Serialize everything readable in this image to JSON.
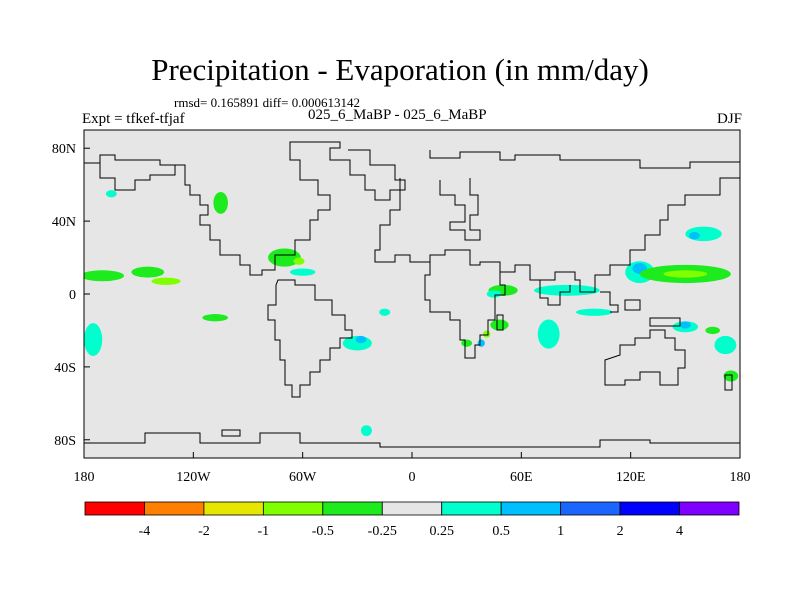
{
  "title": "Precipitation - Evaporation (in mm/day)",
  "stats_text": "rmsd= 0.165891 diff= 0.000613142",
  "left_label": "Expt = tfkef-tfjaf",
  "center_label": "025_6_MaBP - 025_6_MaBP",
  "right_label": "DJF",
  "axes": {
    "x_ticks": [
      {
        "value": -180,
        "label": "180"
      },
      {
        "value": -120,
        "label": "120W"
      },
      {
        "value": -60,
        "label": "60W"
      },
      {
        "value": 0,
        "label": "0"
      },
      {
        "value": 60,
        "label": "60E"
      },
      {
        "value": 120,
        "label": "120E"
      },
      {
        "value": 180,
        "label": "180"
      }
    ],
    "y_ticks": [
      {
        "value": 80,
        "label": "80N"
      },
      {
        "value": 40,
        "label": "40N"
      },
      {
        "value": 0,
        "label": "0"
      },
      {
        "value": -40,
        "label": "40S"
      },
      {
        "value": -80,
        "label": "80S"
      }
    ],
    "lon_range": [
      -180,
      180
    ],
    "lat_range": [
      -90,
      90
    ]
  },
  "colors": {
    "background_field": "#e6e6e6",
    "coastline": "#000000"
  },
  "colorbar": {
    "swatches": [
      "#ff0000",
      "#ff8000",
      "#e6e600",
      "#80ff00",
      "#1eeb1e",
      "#e6e6e6",
      "#00ffcc",
      "#00bfff",
      "#1a66ff",
      "#0000ff",
      "#8000ff"
    ],
    "labels": [
      "-4",
      "-2",
      "-1",
      "-0.5",
      "-0.25",
      "0.25",
      "0.5",
      "1",
      "2",
      "4"
    ]
  },
  "field_patches": [
    {
      "color": "#1eeb1e",
      "lon": -170,
      "lat": 10,
      "rlon": 12,
      "rlat": 3
    },
    {
      "color": "#1eeb1e",
      "lon": -145,
      "lat": 12,
      "rlon": 9,
      "rlat": 3
    },
    {
      "color": "#80ff00",
      "lon": -135,
      "lat": 7,
      "rlon": 8,
      "rlat": 2
    },
    {
      "color": "#1eeb1e",
      "lon": -105,
      "lat": 50,
      "rlon": 4,
      "rlat": 6
    },
    {
      "color": "#00ffcc",
      "lon": -165,
      "lat": 55,
      "rlon": 3,
      "rlat": 2
    },
    {
      "color": "#1eeb1e",
      "lon": -70,
      "lat": 20,
      "rlon": 9,
      "rlat": 5
    },
    {
      "color": "#80ff00",
      "lon": -62,
      "lat": 18,
      "rlon": 3,
      "rlat": 2
    },
    {
      "color": "#00ffcc",
      "lon": -60,
      "lat": 12,
      "rlon": 7,
      "rlat": 2
    },
    {
      "color": "#1eeb1e",
      "lon": -108,
      "lat": -13,
      "rlon": 7,
      "rlat": 2
    },
    {
      "color": "#00ffcc",
      "lon": -175,
      "lat": -25,
      "rlon": 5,
      "rlat": 9
    },
    {
      "color": "#00ffcc",
      "lon": -30,
      "lat": -27,
      "rlon": 8,
      "rlat": 4
    },
    {
      "color": "#00bfff",
      "lon": -28,
      "lat": -25,
      "rlon": 3,
      "rlat": 2
    },
    {
      "color": "#00ffcc",
      "lon": -15,
      "lat": -10,
      "rlon": 3,
      "rlat": 2
    },
    {
      "color": "#00ffcc",
      "lon": -25,
      "lat": -75,
      "rlon": 3,
      "rlat": 3
    },
    {
      "color": "#1eeb1e",
      "lon": 50,
      "lat": 2,
      "rlon": 8,
      "rlat": 3
    },
    {
      "color": "#00ffcc",
      "lon": 45,
      "lat": 0,
      "rlon": 4,
      "rlat": 2
    },
    {
      "color": "#00ffcc",
      "lon": 85,
      "lat": 2,
      "rlon": 18,
      "rlat": 3
    },
    {
      "color": "#00ffcc",
      "lon": 100,
      "lat": -10,
      "rlon": 10,
      "rlat": 2
    },
    {
      "color": "#1eeb1e",
      "lon": 48,
      "lat": -17,
      "rlon": 5,
      "rlat": 3
    },
    {
      "color": "#00ffcc",
      "lon": 75,
      "lat": -22,
      "rlon": 6,
      "rlat": 8
    },
    {
      "color": "#00bfff",
      "lon": 38,
      "lat": -27,
      "rlon": 2,
      "rlat": 2
    },
    {
      "color": "#1eeb1e",
      "lon": 30,
      "lat": -27,
      "rlon": 3,
      "rlat": 2
    },
    {
      "color": "#80ff00",
      "lon": 41,
      "lat": -22,
      "rlon": 2,
      "rlat": 2
    },
    {
      "color": "#00ffcc",
      "lon": 125,
      "lat": 12,
      "rlon": 8,
      "rlat": 6
    },
    {
      "color": "#00bfff",
      "lon": 125,
      "lat": 14,
      "rlon": 4,
      "rlat": 3
    },
    {
      "color": "#1eeb1e",
      "lon": 150,
      "lat": 11,
      "rlon": 25,
      "rlat": 5
    },
    {
      "color": "#80ff00",
      "lon": 150,
      "lat": 11,
      "rlon": 12,
      "rlat": 2
    },
    {
      "color": "#00ffcc",
      "lon": 160,
      "lat": 33,
      "rlon": 10,
      "rlat": 4
    },
    {
      "color": "#00bfff",
      "lon": 155,
      "lat": 32,
      "rlon": 3,
      "rlat": 2
    },
    {
      "color": "#00ffcc",
      "lon": 150,
      "lat": -18,
      "rlon": 7,
      "rlat": 3
    },
    {
      "color": "#00bfff",
      "lon": 150,
      "lat": -17,
      "rlon": 3,
      "rlat": 2
    },
    {
      "color": "#00ffcc",
      "lon": 172,
      "lat": -28,
      "rlon": 6,
      "rlat": 5
    },
    {
      "color": "#1eeb1e",
      "lon": 175,
      "lat": -45,
      "rlon": 4,
      "rlat": 3
    },
    {
      "color": "#1eeb1e",
      "lon": 165,
      "lat": -20,
      "rlon": 4,
      "rlat": 2
    }
  ]
}
